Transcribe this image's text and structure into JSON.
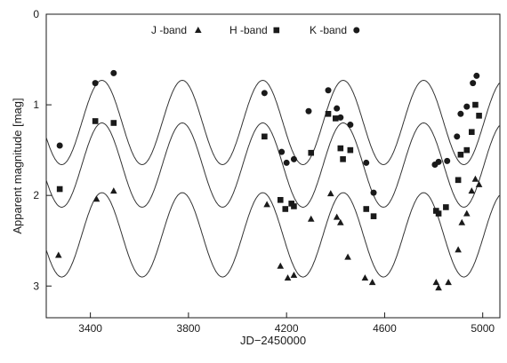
{
  "chart_data": {
    "type": "scatter",
    "title": "",
    "xlabel": "JD−2450000",
    "ylabel": "Apparent magnitude [mag]",
    "xlim": [
      3220,
      5070
    ],
    "ylim": [
      0,
      3.35
    ],
    "y_inverted": true,
    "x_ticks": [
      3400,
      3800,
      4200,
      4600,
      5000
    ],
    "y_ticks": [
      0,
      1,
      2,
      3
    ],
    "legend_position": "top-center",
    "grid": false,
    "model_curves": {
      "period": 328,
      "phase_max_jd": 3775,
      "amplitude": 0.93,
      "peaks": {
        "J": 1.97,
        "H": 1.2,
        "K": 0.73
      }
    },
    "series": [
      {
        "name": "J -band",
        "marker": "triangle",
        "points": [
          [
            3270,
            2.66
          ],
          [
            3425,
            2.04
          ],
          [
            3495,
            1.95
          ],
          [
            4120,
            2.1
          ],
          [
            4175,
            2.78
          ],
          [
            4205,
            2.91
          ],
          [
            4230,
            2.88
          ],
          [
            4300,
            2.26
          ],
          [
            4380,
            1.98
          ],
          [
            4405,
            2.24
          ],
          [
            4420,
            2.3
          ],
          [
            4450,
            2.68
          ],
          [
            4520,
            2.91
          ],
          [
            4550,
            2.96
          ],
          [
            4810,
            2.96
          ],
          [
            4820,
            3.02
          ],
          [
            4860,
            2.96
          ],
          [
            4900,
            2.6
          ],
          [
            4915,
            2.3
          ],
          [
            4935,
            2.2
          ],
          [
            4955,
            1.95
          ],
          [
            4970,
            1.82
          ],
          [
            4985,
            1.88
          ]
        ]
      },
      {
        "name": "H -band",
        "marker": "square",
        "points": [
          [
            3275,
            1.93
          ],
          [
            3420,
            1.18
          ],
          [
            3495,
            1.2
          ],
          [
            4110,
            1.35
          ],
          [
            4175,
            2.05
          ],
          [
            4195,
            2.15
          ],
          [
            4220,
            2.09
          ],
          [
            4230,
            2.12
          ],
          [
            4300,
            1.53
          ],
          [
            4370,
            1.1
          ],
          [
            4400,
            1.15
          ],
          [
            4420,
            1.48
          ],
          [
            4430,
            1.6
          ],
          [
            4460,
            1.5
          ],
          [
            4525,
            2.15
          ],
          [
            4555,
            2.23
          ],
          [
            4810,
            2.17
          ],
          [
            4820,
            2.2
          ],
          [
            4850,
            2.13
          ],
          [
            4900,
            1.83
          ],
          [
            4910,
            1.55
          ],
          [
            4935,
            1.5
          ],
          [
            4955,
            1.3
          ],
          [
            4970,
            1.0
          ],
          [
            4985,
            1.12
          ]
        ]
      },
      {
        "name": "K -band",
        "marker": "circle",
        "points": [
          [
            3275,
            1.45
          ],
          [
            3420,
            0.76
          ],
          [
            3495,
            0.65
          ],
          [
            4110,
            0.87
          ],
          [
            4180,
            1.52
          ],
          [
            4200,
            1.64
          ],
          [
            4230,
            1.6
          ],
          [
            4290,
            1.07
          ],
          [
            4370,
            0.84
          ],
          [
            4405,
            1.04
          ],
          [
            4420,
            1.14
          ],
          [
            4460,
            1.22
          ],
          [
            4525,
            1.64
          ],
          [
            4555,
            1.97
          ],
          [
            4805,
            1.66
          ],
          [
            4820,
            1.63
          ],
          [
            4855,
            1.62
          ],
          [
            4895,
            1.35
          ],
          [
            4910,
            1.1
          ],
          [
            4935,
            1.02
          ],
          [
            4960,
            0.76
          ],
          [
            4975,
            0.68
          ]
        ]
      }
    ]
  }
}
